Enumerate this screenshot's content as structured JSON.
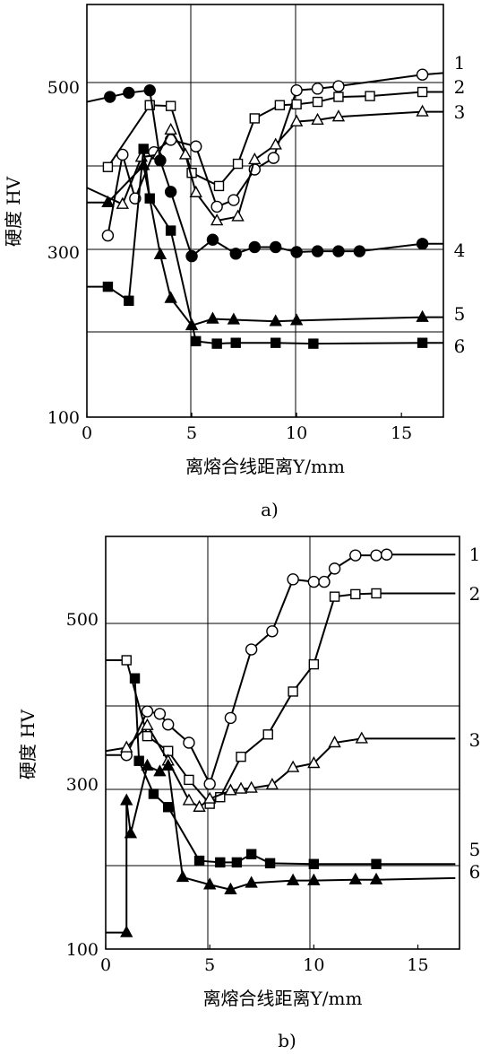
{
  "chart_data": [
    {
      "type": "line",
      "panel_label": "a)",
      "xlabel": "离熔合线距离Y/mm",
      "ylabel": "硬度 HV",
      "xlim": [
        0,
        17
      ],
      "ylim": [
        100,
        600
      ],
      "xticks": [
        "0",
        "5",
        "10",
        "15"
      ],
      "yticks": [
        "100",
        "300",
        "500"
      ],
      "grid": true,
      "legend": "numbers at right end of each curve",
      "series": [
        {
          "name": "1",
          "marker": "circle-open",
          "points": [
            [
              1,
              320
            ],
            [
              1.7,
              418
            ],
            [
              2.3,
              365
            ],
            [
              3.2,
              421
            ],
            [
              4,
              436
            ],
            [
              5.2,
              428
            ],
            [
              6.2,
              355
            ],
            [
              7,
              363
            ],
            [
              8,
              400
            ],
            [
              8.9,
              414
            ],
            [
              10,
              496
            ],
            [
              11,
              498
            ],
            [
              12,
              501
            ],
            [
              16,
              515
            ],
            [
              17,
              517
            ]
          ]
        },
        {
          "name": "2",
          "marker": "square-open",
          "points": [
            [
              1,
              403
            ],
            [
              3,
              478
            ],
            [
              4,
              477
            ],
            [
              5,
              396
            ],
            [
              6.3,
              380
            ],
            [
              7.2,
              407
            ],
            [
              8,
              462
            ],
            [
              9.2,
              478
            ],
            [
              10,
              479
            ],
            [
              11,
              482
            ],
            [
              12,
              488
            ],
            [
              13.5,
              489
            ],
            [
              16,
              494
            ],
            [
              17,
              494
            ]
          ]
        },
        {
          "name": "3",
          "marker": "triangle-open",
          "points": [
            [
              0,
              378
            ],
            [
              1.7,
              358
            ],
            [
              2.6,
              415
            ],
            [
              3.4,
              418
            ],
            [
              4,
              448
            ],
            [
              4.7,
              418
            ],
            [
              5.2,
              372
            ],
            [
              6.2,
              338
            ],
            [
              7.2,
              343
            ],
            [
              8,
              412
            ],
            [
              9,
              430
            ],
            [
              10,
              458
            ],
            [
              11,
              460
            ],
            [
              12,
              464
            ],
            [
              16,
              470
            ],
            [
              17,
              470
            ]
          ]
        },
        {
          "name": "4",
          "marker": "circle-filled",
          "points": [
            [
              0,
              482
            ],
            [
              1.1,
              488
            ],
            [
              2,
              493
            ],
            [
              3,
              496
            ],
            [
              3.5,
              411
            ],
            [
              4,
              373
            ],
            [
              5,
              295
            ],
            [
              6,
              315
            ],
            [
              7.1,
              298
            ],
            [
              8,
              306
            ],
            [
              9,
              306
            ],
            [
              10,
              300
            ],
            [
              11,
              301
            ],
            [
              12,
              301
            ],
            [
              13,
              301
            ],
            [
              16,
              310
            ],
            [
              17,
              310
            ]
          ]
        },
        {
          "name": "5",
          "marker": "triangle-filled",
          "points": [
            [
              0,
              360
            ],
            [
              1,
              360
            ],
            [
              2.7,
              405
            ],
            [
              3.5,
              297
            ],
            [
              4,
              244
            ],
            [
              5,
              211
            ],
            [
              6,
              219
            ],
            [
              7,
              218
            ],
            [
              9,
              216
            ],
            [
              10,
              217
            ],
            [
              16,
              221
            ],
            [
              17,
              221
            ]
          ]
        },
        {
          "name": "6",
          "marker": "square-filled",
          "points": [
            [
              0,
              258
            ],
            [
              1,
              258
            ],
            [
              2,
              241
            ],
            [
              2.7,
              425
            ],
            [
              3,
              365
            ],
            [
              4,
              326
            ],
            [
              5.2,
              192
            ],
            [
              6.2,
              189
            ],
            [
              7.1,
              190
            ],
            [
              9,
              190
            ],
            [
              10.8,
              189
            ],
            [
              16,
              190
            ],
            [
              17,
              190
            ]
          ]
        }
      ]
    },
    {
      "type": "line",
      "panel_label": "b)",
      "xlabel": "离熔合线距离Y/mm",
      "ylabel": "硬度 HV",
      "xlim": [
        0,
        17
      ],
      "ylim": [
        100,
        600
      ],
      "xticks": [
        "0",
        "5",
        "10",
        "15"
      ],
      "yticks": [
        "100",
        "300",
        "500"
      ],
      "grid": true,
      "legend": "numbers at right end of each curve",
      "series": [
        {
          "name": "1",
          "marker": "circle-open",
          "points": [
            [
              0,
              335
            ],
            [
              1,
              335
            ],
            [
              2,
              388
            ],
            [
              2.6,
              385
            ],
            [
              3,
              372
            ],
            [
              4,
              350
            ],
            [
              5,
              300
            ],
            [
              6,
              380
            ],
            [
              7,
              463
            ],
            [
              8,
              485
            ],
            [
              9,
              548
            ],
            [
              10,
              545
            ],
            [
              10.5,
              545
            ],
            [
              11,
              561
            ],
            [
              12,
              577
            ],
            [
              13,
              577
            ],
            [
              13.5,
              578
            ],
            [
              16.8,
              578
            ]
          ]
        },
        {
          "name": "2",
          "marker": "square-open",
          "points": [
            [
              0,
              450
            ],
            [
              1,
              450
            ],
            [
              2,
              358
            ],
            [
              3,
              340
            ],
            [
              4,
              305
            ],
            [
              5,
              276
            ],
            [
              5.5,
              284
            ],
            [
              6.5,
              333
            ],
            [
              7.8,
              360
            ],
            [
              9,
              412
            ],
            [
              10,
              445
            ],
            [
              11,
              527
            ],
            [
              12,
              530
            ],
            [
              13,
              531
            ],
            [
              16.8,
              531
            ]
          ]
        },
        {
          "name": "3",
          "marker": "triangle-open",
          "points": [
            [
              0,
              340
            ],
            [
              1,
              344
            ],
            [
              2,
              371
            ],
            [
              3,
              328
            ],
            [
              4,
              280
            ],
            [
              4.5,
              272
            ],
            [
              5,
              282
            ],
            [
              6,
              292
            ],
            [
              6.5,
              294
            ],
            [
              7,
              295
            ],
            [
              8,
              299
            ],
            [
              9,
              320
            ],
            [
              10,
              325
            ],
            [
              11,
              350
            ],
            [
              12.3,
              355
            ],
            [
              16.8,
              355
            ]
          ]
        },
        {
          "name": "5",
          "marker": "square-filled",
          "points": [
            [
              1.4,
              428
            ],
            [
              1.6,
              328
            ],
            [
              2.3,
              288
            ],
            [
              3,
              272
            ],
            [
              4.5,
              207
            ],
            [
              5.5,
              205
            ],
            [
              6.3,
              205
            ],
            [
              7,
              215
            ],
            [
              7.9,
              204
            ],
            [
              10,
              203
            ],
            [
              13,
              203
            ],
            [
              16.8,
              203
            ]
          ]
        },
        {
          "name": "6",
          "marker": "triangle-filled",
          "points": [
            [
              0,
              120
            ],
            [
              1,
              120
            ],
            [
              1,
              280
            ],
            [
              1.2,
              240
            ],
            [
              2,
              322
            ],
            [
              2.6,
              315
            ],
            [
              3,
              322
            ],
            [
              3.7,
              187
            ],
            [
              5,
              178
            ],
            [
              6,
              172
            ],
            [
              7,
              180
            ],
            [
              9,
              183
            ],
            [
              10,
              183
            ],
            [
              12,
              184
            ],
            [
              13,
              184
            ],
            [
              16.8,
              186
            ]
          ]
        }
      ]
    }
  ]
}
